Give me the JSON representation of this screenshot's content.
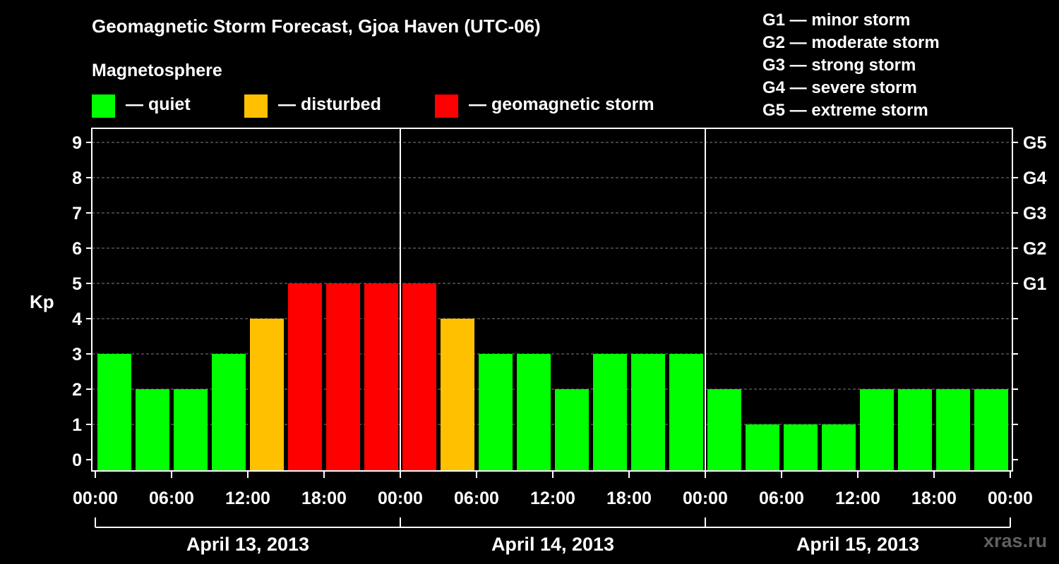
{
  "title": "Geomagnetic Storm Forecast, Gjoa Haven (UTC-06)",
  "legend": {
    "heading": "Magnetosphere",
    "items": [
      {
        "label": "— quiet",
        "color": "#00ff00"
      },
      {
        "label": "— disturbed",
        "color": "#ffc000"
      },
      {
        "label": "— geomagnetic storm",
        "color": "#ff0000"
      }
    ]
  },
  "g_scale": [
    "G1 — minor storm",
    "G2 — moderate storm",
    "G3 — strong storm",
    "G4 — severe storm",
    "G5 — extreme storm"
  ],
  "watermark": "xras.ru",
  "chart_data": {
    "type": "bar",
    "ylabel": "Kp",
    "ylim": [
      0,
      9
    ],
    "yticks": [
      "0",
      "1",
      "2",
      "3",
      "4",
      "5",
      "6",
      "7",
      "8",
      "9"
    ],
    "right_ticks": [
      {
        "value": 5,
        "label": "G1"
      },
      {
        "value": 6,
        "label": "G2"
      },
      {
        "value": 7,
        "label": "G3"
      },
      {
        "value": 8,
        "label": "G4"
      },
      {
        "value": 9,
        "label": "G5"
      }
    ],
    "grid": "dashed horizontal",
    "x_tick_labels": [
      "00:00",
      "06:00",
      "12:00",
      "18:00",
      "00:00",
      "06:00",
      "12:00",
      "18:00",
      "00:00",
      "06:00",
      "12:00",
      "18:00",
      "00:00"
    ],
    "days": [
      "April 13, 2013",
      "April 14, 2013",
      "April 15, 2013"
    ],
    "interval_hours": 3,
    "values": [
      3,
      2,
      2,
      3,
      4,
      5,
      5,
      5,
      5,
      4,
      3,
      3,
      2,
      3,
      3,
      3,
      2,
      1,
      1,
      1,
      2,
      2,
      2,
      2
    ],
    "colors": [
      "#00ff00",
      "#00ff00",
      "#00ff00",
      "#00ff00",
      "#ffc000",
      "#ff0000",
      "#ff0000",
      "#ff0000",
      "#ff0000",
      "#ffc000",
      "#00ff00",
      "#00ff00",
      "#00ff00",
      "#00ff00",
      "#00ff00",
      "#00ff00",
      "#00ff00",
      "#00ff00",
      "#00ff00",
      "#00ff00",
      "#00ff00",
      "#00ff00",
      "#00ff00",
      "#00ff00"
    ]
  }
}
